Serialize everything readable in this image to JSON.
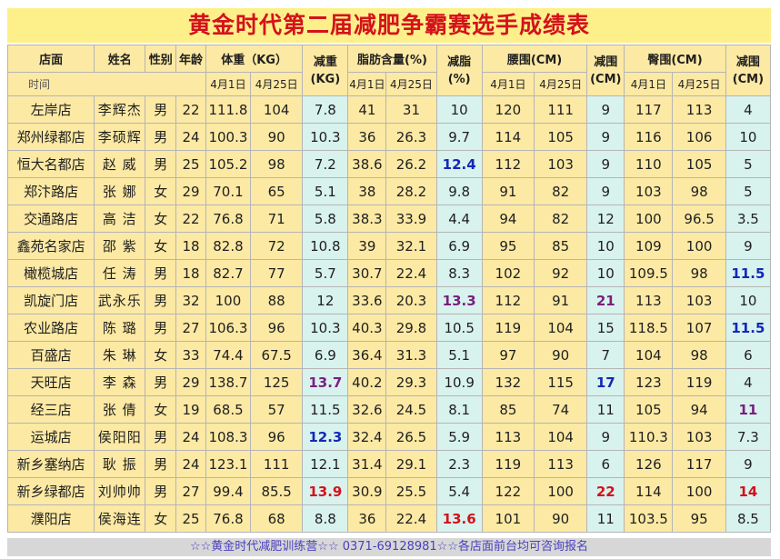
{
  "title": "黄金时代第二届减肥争霸赛选手成绩表",
  "headers": {
    "store": "店面",
    "name": "姓名",
    "gender": "性别",
    "age": "年龄",
    "weight": "体重（KG）",
    "weight_loss": [
      "减重",
      "(KG)"
    ],
    "fat": "脂肪含量(%)",
    "fat_loss": [
      "减脂",
      "(%)"
    ],
    "waist": "腰围(CM)",
    "waist_loss": [
      "减围",
      "(CM)"
    ],
    "hip": "臀围(CM)",
    "hip_loss": [
      "减围",
      "(CM)"
    ],
    "time": "时间",
    "apr1": "4月1日",
    "apr25": "4月25日"
  },
  "rows": [
    {
      "store": "左岸店",
      "name": "李辉杰",
      "gender": "男",
      "age": "22",
      "w1": "111.8",
      "w2": "104",
      "wl": "7.8",
      "f1": "41",
      "f2": "31",
      "fl": "10",
      "wa1": "120",
      "wa2": "111",
      "wal": "9",
      "h1": "117",
      "h2": "113",
      "hl": "4"
    },
    {
      "store": "郑州绿都店",
      "name": "李硕辉",
      "gender": "男",
      "age": "24",
      "w1": "100.3",
      "w2": "90",
      "wl": "10.3",
      "f1": "36",
      "f2": "26.3",
      "fl": "9.7",
      "wa1": "114",
      "wa2": "105",
      "wal": "9",
      "h1": "116",
      "h2": "106",
      "hl": "10"
    },
    {
      "store": "恒大名都店",
      "name": "赵 威",
      "gender": "男",
      "age": "25",
      "w1": "105.2",
      "w2": "98",
      "wl": "7.2",
      "f1": "38.6",
      "f2": "26.2",
      "fl": "12.4",
      "wa1": "112",
      "wa2": "103",
      "wal": "9",
      "h1": "110",
      "h2": "105",
      "hl": "5"
    },
    {
      "store": "郑汴路店",
      "name": "张 娜",
      "gender": "女",
      "age": "29",
      "w1": "70.1",
      "w2": "65",
      "wl": "5.1",
      "f1": "38",
      "f2": "28.2",
      "fl": "9.8",
      "wa1": "91",
      "wa2": "82",
      "wal": "9",
      "h1": "103",
      "h2": "98",
      "hl": "5"
    },
    {
      "store": "交通路店",
      "name": "高 洁",
      "gender": "女",
      "age": "22",
      "w1": "76.8",
      "w2": "71",
      "wl": "5.8",
      "f1": "38.3",
      "f2": "33.9",
      "fl": "4.4",
      "wa1": "94",
      "wa2": "82",
      "wal": "12",
      "h1": "100",
      "h2": "96.5",
      "hl": "3.5"
    },
    {
      "store": "鑫苑名家店",
      "name": "邵 紫",
      "gender": "女",
      "age": "18",
      "w1": "82.8",
      "w2": "72",
      "wl": "10.8",
      "f1": "39",
      "f2": "32.1",
      "fl": "6.9",
      "wa1": "95",
      "wa2": "85",
      "wal": "10",
      "h1": "109",
      "h2": "100",
      "hl": "9"
    },
    {
      "store": "橄榄城店",
      "name": "任 涛",
      "gender": "男",
      "age": "18",
      "w1": "82.7",
      "w2": "77",
      "wl": "5.7",
      "f1": "30.7",
      "f2": "22.4",
      "fl": "8.3",
      "wa1": "102",
      "wa2": "92",
      "wal": "10",
      "h1": "109.5",
      "h2": "98",
      "hl": "11.5"
    },
    {
      "store": "凯旋门店",
      "name": "武永乐",
      "gender": "男",
      "age": "32",
      "w1": "100",
      "w2": "88",
      "wl": "12",
      "f1": "33.6",
      "f2": "20.3",
      "fl": "13.3",
      "wa1": "112",
      "wa2": "91",
      "wal": "21",
      "h1": "113",
      "h2": "103",
      "hl": "10"
    },
    {
      "store": "农业路店",
      "name": "陈 璐",
      "gender": "男",
      "age": "27",
      "w1": "106.3",
      "w2": "96",
      "wl": "10.3",
      "f1": "40.3",
      "f2": "29.8",
      "fl": "10.5",
      "wa1": "119",
      "wa2": "104",
      "wal": "15",
      "h1": "118.5",
      "h2": "107",
      "hl": "11.5"
    },
    {
      "store": "百盛店",
      "name": "朱 琳",
      "gender": "女",
      "age": "33",
      "w1": "74.4",
      "w2": "67.5",
      "wl": "6.9",
      "f1": "36.4",
      "f2": "31.3",
      "fl": "5.1",
      "wa1": "97",
      "wa2": "90",
      "wal": "7",
      "h1": "104",
      "h2": "98",
      "hl": "6"
    },
    {
      "store": "天旺店",
      "name": "李 森",
      "gender": "男",
      "age": "29",
      "w1": "138.7",
      "w2": "125",
      "wl": "13.7",
      "f1": "40.2",
      "f2": "29.3",
      "fl": "10.9",
      "wa1": "132",
      "wa2": "115",
      "wal": "17",
      "h1": "123",
      "h2": "119",
      "hl": "4"
    },
    {
      "store": "经三店",
      "name": "张 倩",
      "gender": "女",
      "age": "19",
      "w1": "68.5",
      "w2": "57",
      "wl": "11.5",
      "f1": "32.6",
      "f2": "24.5",
      "fl": "8.1",
      "wa1": "85",
      "wa2": "74",
      "wal": "11",
      "h1": "105",
      "h2": "94",
      "hl": "11"
    },
    {
      "store": "运城店",
      "name": "侯阳阳",
      "gender": "男",
      "age": "24",
      "w1": "108.3",
      "w2": "96",
      "wl": "12.3",
      "f1": "32.4",
      "f2": "26.5",
      "fl": "5.9",
      "wa1": "113",
      "wa2": "104",
      "wal": "9",
      "h1": "110.3",
      "h2": "103",
      "hl": "7.3"
    },
    {
      "store": "新乡塞纳店",
      "name": "耿 振",
      "gender": "男",
      "age": "24",
      "w1": "123.1",
      "w2": "111",
      "wl": "12.1",
      "f1": "31.4",
      "f2": "29.1",
      "fl": "2.3",
      "wa1": "119",
      "wa2": "113",
      "wal": "6",
      "h1": "126",
      "h2": "117",
      "hl": "9"
    },
    {
      "store": "新乡绿都店",
      "name": "刘帅帅",
      "gender": "男",
      "age": "27",
      "w1": "99.4",
      "w2": "85.5",
      "wl": "13.9",
      "f1": "30.9",
      "f2": "25.5",
      "fl": "5.4",
      "wa1": "122",
      "wa2": "100",
      "wal": "22",
      "h1": "114",
      "h2": "100",
      "hl": "14"
    },
    {
      "store": "濮阳店",
      "name": "侯海连",
      "gender": "女",
      "age": "25",
      "w1": "76.8",
      "w2": "68",
      "wl": "8.8",
      "f1": "36",
      "f2": "22.4",
      "fl": "13.6",
      "wa1": "101",
      "wa2": "90",
      "wal": "11",
      "h1": "103.5",
      "h2": "95",
      "hl": "8.5"
    }
  ],
  "highlights": {
    "wl": {
      "10": "pur",
      "12": "blu",
      "14": "red"
    },
    "fl": {
      "2": "blu",
      "7": "pur",
      "15": "red"
    },
    "wal": {
      "7": "pur",
      "10": "blu",
      "14": "red"
    },
    "hl": {
      "6": "blu",
      "8": "blu",
      "11": "pur",
      "14": "red"
    }
  },
  "footer": "☆☆黄金时代减肥训练营☆☆ 0371-69128981☆☆各店面前台均可咨询报名"
}
